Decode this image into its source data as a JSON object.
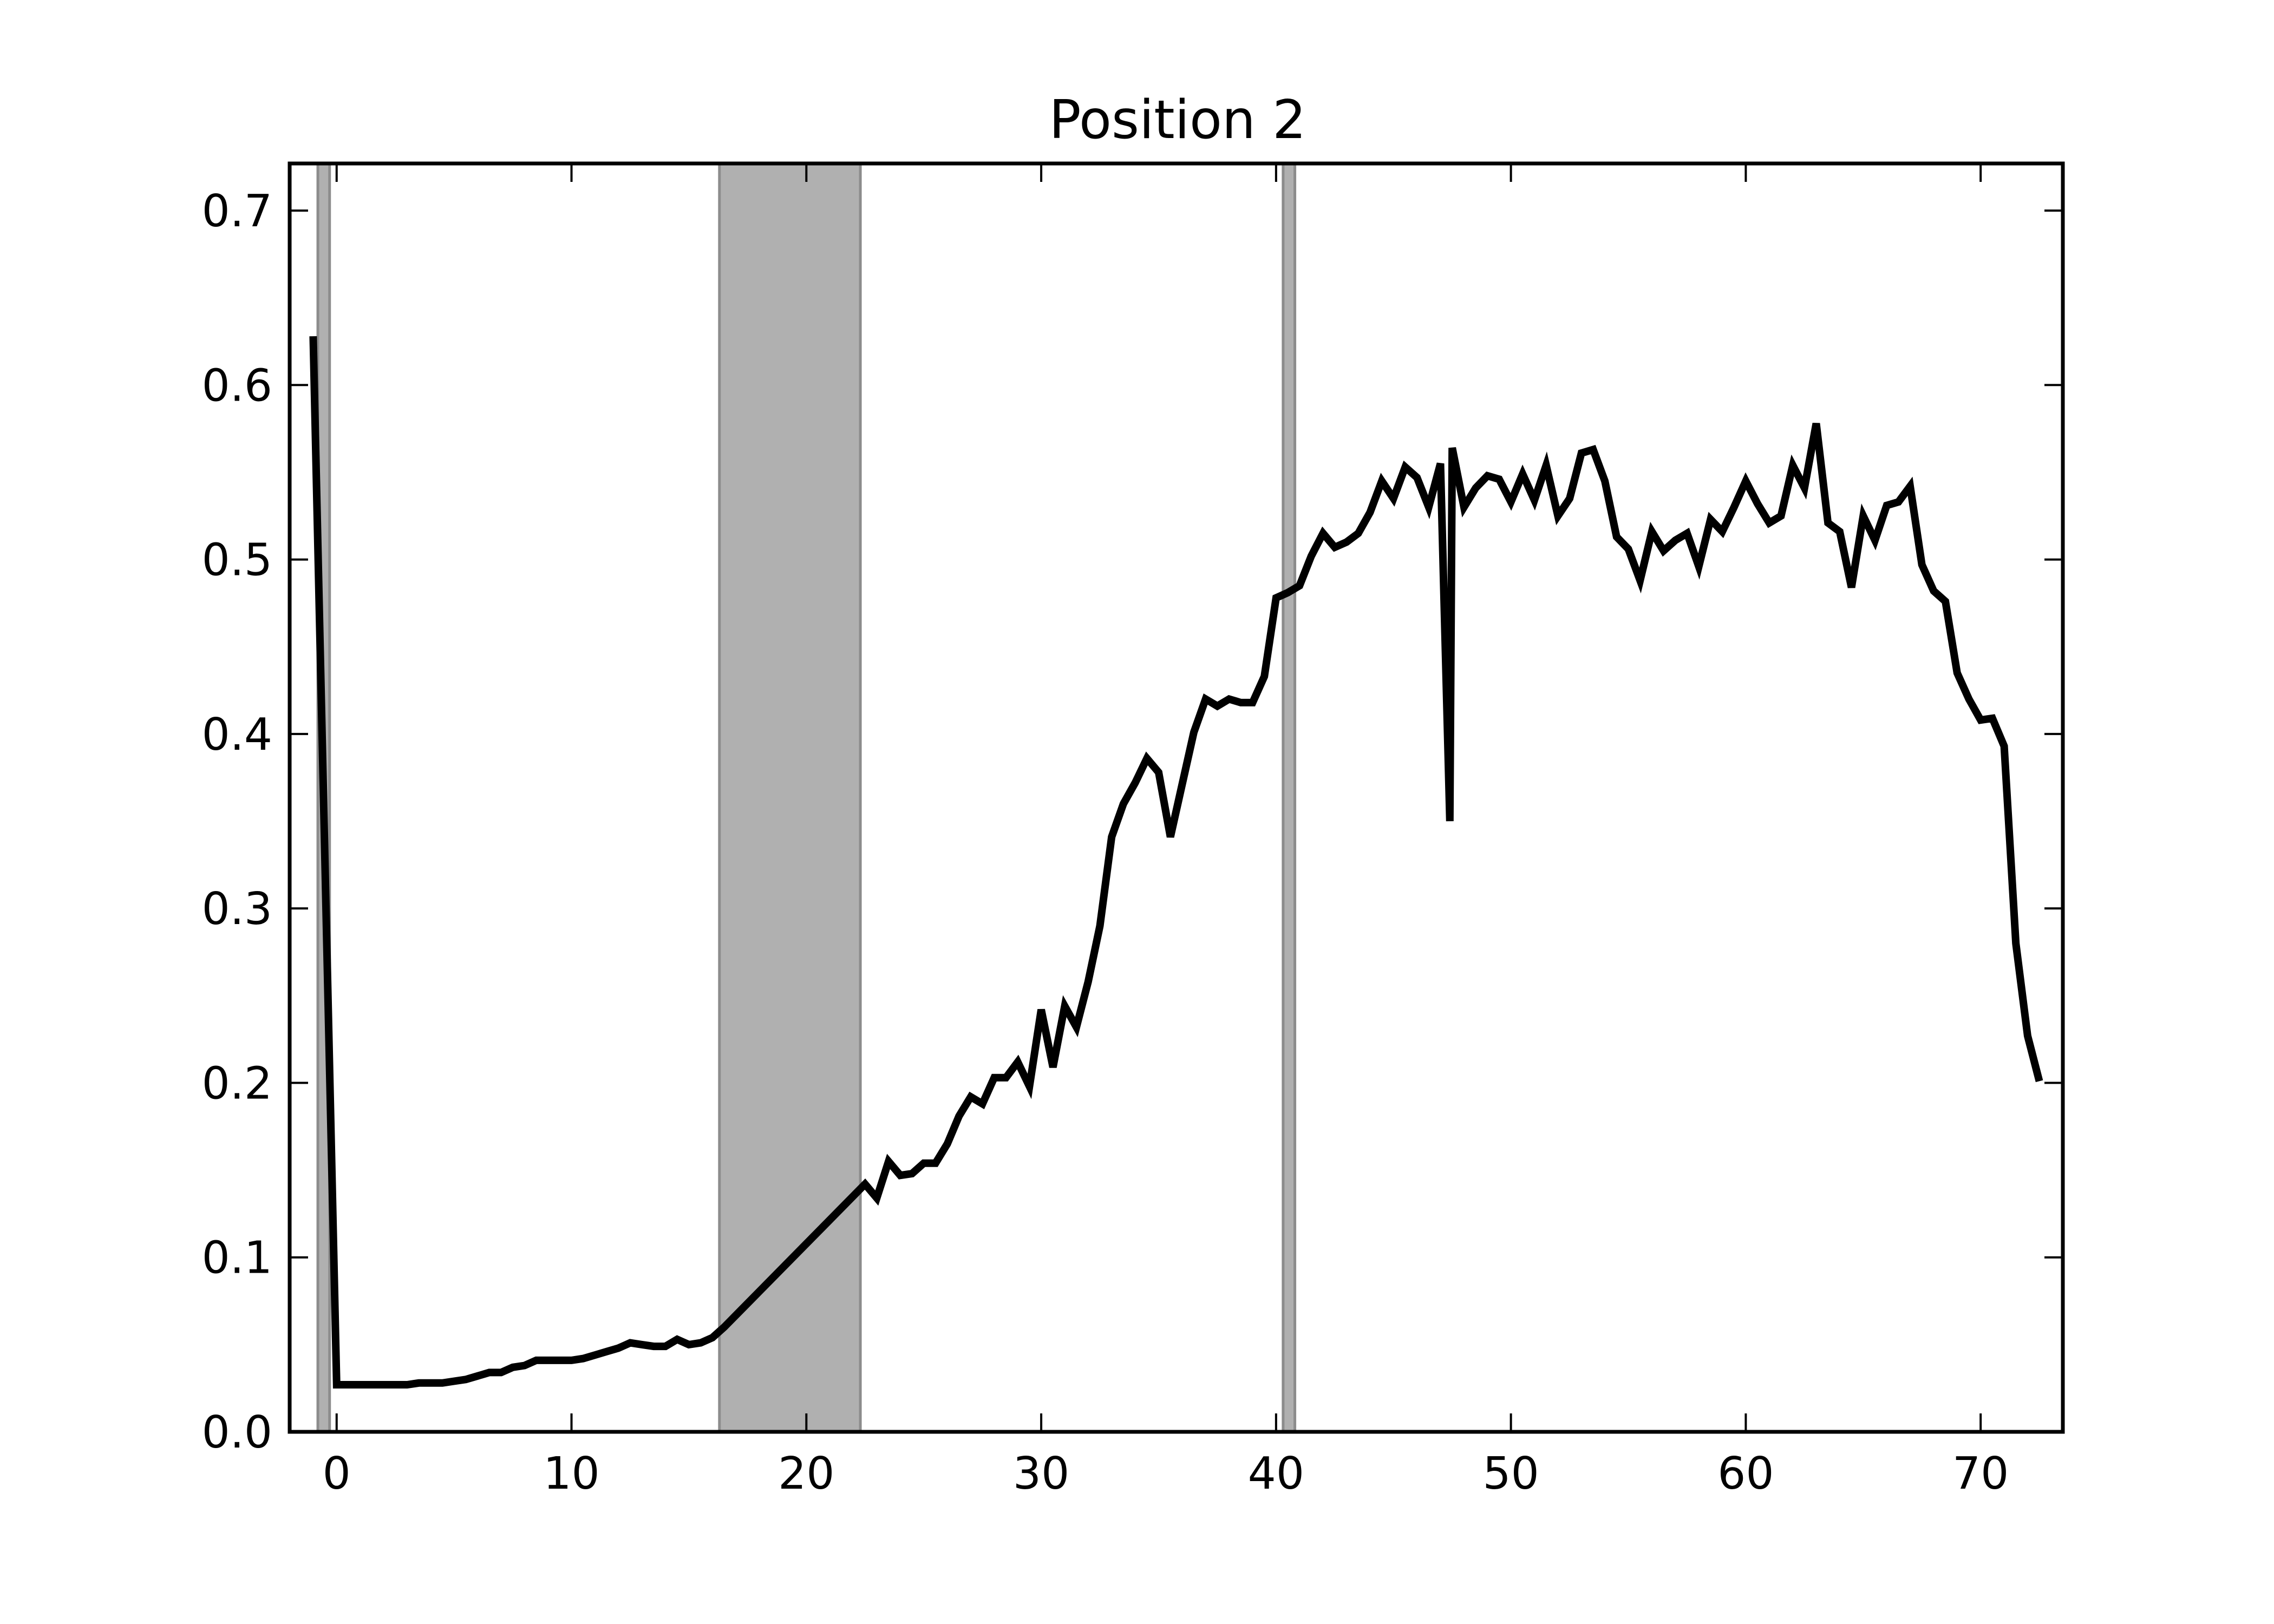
{
  "chart_data": {
    "type": "line",
    "title": "Position 2",
    "xlabel": "",
    "ylabel": "",
    "xlim": [
      -2,
      73.5
    ],
    "ylim": [
      0,
      0.727
    ],
    "xticks": [
      0,
      10,
      20,
      30,
      40,
      50,
      60,
      70
    ],
    "yticks": [
      0.0,
      0.1,
      0.2,
      0.3,
      0.4,
      0.5,
      0.6,
      0.7
    ],
    "xtick_labels": [
      "0",
      "10",
      "20",
      "30",
      "40",
      "50",
      "60",
      "70"
    ],
    "ytick_labels": [
      "0.0",
      "0.1",
      "0.2",
      "0.3",
      "0.4",
      "0.5",
      "0.6",
      "0.7"
    ],
    "grid": false,
    "legend": "none",
    "line_color": "#000000",
    "shaded_color": "#b0b0b0",
    "shaded_edge_color": "#8c8c8c",
    "shaded_regions": [
      [
        -0.8,
        -0.3
      ],
      [
        16.3,
        22.3
      ],
      [
        40.3,
        40.8
      ]
    ],
    "series": [
      {
        "x": [
          -1.0,
          0.0,
          0.5,
          1.0,
          1.5,
          2.0,
          2.5,
          3.0,
          3.5,
          4.0,
          4.5,
          5.0,
          5.5,
          6.0,
          6.5,
          7.0,
          7.5,
          8.0,
          8.5,
          9.0,
          9.5,
          10.0,
          10.5,
          11.0,
          11.5,
          12.0,
          12.5,
          13.0,
          13.5,
          14.0,
          14.5,
          15.0,
          15.5,
          16.0,
          16.5,
          22.5,
          23.0,
          23.5,
          24.0,
          24.5,
          25.0,
          25.5,
          26.0,
          26.5,
          27.0,
          27.5,
          28.0,
          28.5,
          29.0,
          29.5,
          30.0,
          30.5,
          31.0,
          31.5,
          32.0,
          32.5,
          33.0,
          33.5,
          34.0,
          34.5,
          35.0,
          35.5,
          36.0,
          36.5,
          37.0,
          37.5,
          38.0,
          38.5,
          39.0,
          39.5,
          40.0,
          40.5,
          41.0,
          41.5,
          42.0,
          42.5,
          43.0,
          43.5,
          44.0,
          44.5,
          45.0,
          45.5,
          46.0,
          46.5,
          47.0,
          47.4,
          47.5,
          48.0,
          48.5,
          49.0,
          49.5,
          50.0,
          50.5,
          51.0,
          51.5,
          52.0,
          52.5,
          53.0,
          53.5,
          54.0,
          54.5,
          55.0,
          55.5,
          56.0,
          56.5,
          57.0,
          57.5,
          58.0,
          58.5,
          59.0,
          59.5,
          60.0,
          60.5,
          61.0,
          61.5,
          62.0,
          62.5,
          63.0,
          63.5,
          64.0,
          64.5,
          65.0,
          65.5,
          66.0,
          66.5,
          67.0,
          67.5,
          68.0,
          68.5,
          69.0,
          69.5,
          70.0,
          70.5,
          71.0,
          71.5,
          72.0,
          72.5
        ],
        "y": [
          0.628,
          0.027,
          0.027,
          0.027,
          0.027,
          0.027,
          0.027,
          0.027,
          0.028,
          0.028,
          0.028,
          0.029,
          0.03,
          0.032,
          0.034,
          0.034,
          0.037,
          0.038,
          0.041,
          0.041,
          0.041,
          0.041,
          0.042,
          0.044,
          0.046,
          0.048,
          0.051,
          0.05,
          0.049,
          0.049,
          0.053,
          0.05,
          0.051,
          0.054,
          0.06,
          0.142,
          0.134,
          0.155,
          0.147,
          0.148,
          0.154,
          0.154,
          0.165,
          0.181,
          0.192,
          0.188,
          0.203,
          0.203,
          0.212,
          0.198,
          0.242,
          0.209,
          0.244,
          0.232,
          0.258,
          0.29,
          0.341,
          0.36,
          0.372,
          0.386,
          0.378,
          0.341,
          0.371,
          0.401,
          0.42,
          0.416,
          0.42,
          0.418,
          0.418,
          0.433,
          0.478,
          0.481,
          0.485,
          0.502,
          0.515,
          0.507,
          0.51,
          0.515,
          0.527,
          0.545,
          0.535,
          0.553,
          0.547,
          0.53,
          0.555,
          0.35,
          0.564,
          0.53,
          0.541,
          0.548,
          0.546,
          0.533,
          0.549,
          0.534,
          0.554,
          0.525,
          0.535,
          0.561,
          0.563,
          0.545,
          0.513,
          0.506,
          0.488,
          0.516,
          0.505,
          0.511,
          0.515,
          0.496,
          0.523,
          0.516,
          0.53,
          0.545,
          0.532,
          0.521,
          0.525,
          0.554,
          0.541,
          0.578,
          0.521,
          0.516,
          0.484,
          0.525,
          0.511,
          0.531,
          0.533,
          0.542,
          0.497,
          0.482,
          0.476,
          0.435,
          0.42,
          0.408,
          0.409,
          0.393,
          0.28,
          0.227,
          0.201
        ]
      }
    ]
  }
}
